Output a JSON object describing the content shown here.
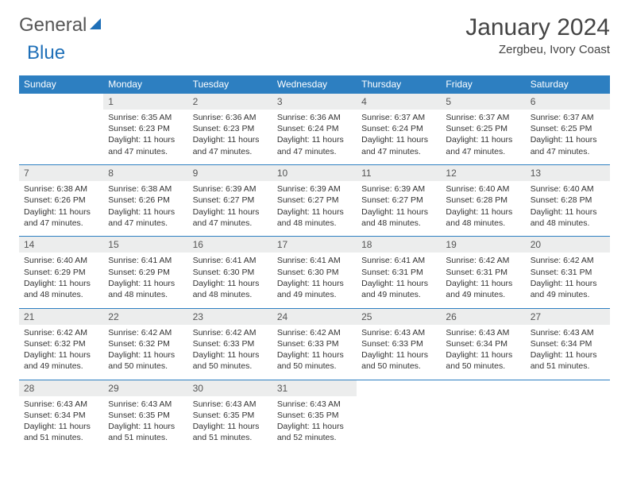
{
  "brand": {
    "word1": "General",
    "word2": "Blue"
  },
  "title": "January 2024",
  "location": "Zergbeu, Ivory Coast",
  "day_names": [
    "Sunday",
    "Monday",
    "Tuesday",
    "Wednesday",
    "Thursday",
    "Friday",
    "Saturday"
  ],
  "colors": {
    "header_bg": "#2d7fc1",
    "header_text": "#ffffff",
    "datenum_bg": "#eceded",
    "rule": "#2d7fc1",
    "brand_blue": "#1e6fb8"
  },
  "fonts": {
    "title_size_pt": 22,
    "location_size_pt": 11,
    "dayhead_size_pt": 9,
    "cell_size_pt": 8
  },
  "layout": {
    "columns": 7,
    "rows": 5,
    "first_day_column_index": 1
  },
  "days": [
    {
      "n": 1,
      "sunrise": "6:35 AM",
      "sunset": "6:23 PM",
      "daylight": "11 hours and 47 minutes."
    },
    {
      "n": 2,
      "sunrise": "6:36 AM",
      "sunset": "6:23 PM",
      "daylight": "11 hours and 47 minutes."
    },
    {
      "n": 3,
      "sunrise": "6:36 AM",
      "sunset": "6:24 PM",
      "daylight": "11 hours and 47 minutes."
    },
    {
      "n": 4,
      "sunrise": "6:37 AM",
      "sunset": "6:24 PM",
      "daylight": "11 hours and 47 minutes."
    },
    {
      "n": 5,
      "sunrise": "6:37 AM",
      "sunset": "6:25 PM",
      "daylight": "11 hours and 47 minutes."
    },
    {
      "n": 6,
      "sunrise": "6:37 AM",
      "sunset": "6:25 PM",
      "daylight": "11 hours and 47 minutes."
    },
    {
      "n": 7,
      "sunrise": "6:38 AM",
      "sunset": "6:26 PM",
      "daylight": "11 hours and 47 minutes."
    },
    {
      "n": 8,
      "sunrise": "6:38 AM",
      "sunset": "6:26 PM",
      "daylight": "11 hours and 47 minutes."
    },
    {
      "n": 9,
      "sunrise": "6:39 AM",
      "sunset": "6:27 PM",
      "daylight": "11 hours and 47 minutes."
    },
    {
      "n": 10,
      "sunrise": "6:39 AM",
      "sunset": "6:27 PM",
      "daylight": "11 hours and 48 minutes."
    },
    {
      "n": 11,
      "sunrise": "6:39 AM",
      "sunset": "6:27 PM",
      "daylight": "11 hours and 48 minutes."
    },
    {
      "n": 12,
      "sunrise": "6:40 AM",
      "sunset": "6:28 PM",
      "daylight": "11 hours and 48 minutes."
    },
    {
      "n": 13,
      "sunrise": "6:40 AM",
      "sunset": "6:28 PM",
      "daylight": "11 hours and 48 minutes."
    },
    {
      "n": 14,
      "sunrise": "6:40 AM",
      "sunset": "6:29 PM",
      "daylight": "11 hours and 48 minutes."
    },
    {
      "n": 15,
      "sunrise": "6:41 AM",
      "sunset": "6:29 PM",
      "daylight": "11 hours and 48 minutes."
    },
    {
      "n": 16,
      "sunrise": "6:41 AM",
      "sunset": "6:30 PM",
      "daylight": "11 hours and 48 minutes."
    },
    {
      "n": 17,
      "sunrise": "6:41 AM",
      "sunset": "6:30 PM",
      "daylight": "11 hours and 49 minutes."
    },
    {
      "n": 18,
      "sunrise": "6:41 AM",
      "sunset": "6:31 PM",
      "daylight": "11 hours and 49 minutes."
    },
    {
      "n": 19,
      "sunrise": "6:42 AM",
      "sunset": "6:31 PM",
      "daylight": "11 hours and 49 minutes."
    },
    {
      "n": 20,
      "sunrise": "6:42 AM",
      "sunset": "6:31 PM",
      "daylight": "11 hours and 49 minutes."
    },
    {
      "n": 21,
      "sunrise": "6:42 AM",
      "sunset": "6:32 PM",
      "daylight": "11 hours and 49 minutes."
    },
    {
      "n": 22,
      "sunrise": "6:42 AM",
      "sunset": "6:32 PM",
      "daylight": "11 hours and 50 minutes."
    },
    {
      "n": 23,
      "sunrise": "6:42 AM",
      "sunset": "6:33 PM",
      "daylight": "11 hours and 50 minutes."
    },
    {
      "n": 24,
      "sunrise": "6:42 AM",
      "sunset": "6:33 PM",
      "daylight": "11 hours and 50 minutes."
    },
    {
      "n": 25,
      "sunrise": "6:43 AM",
      "sunset": "6:33 PM",
      "daylight": "11 hours and 50 minutes."
    },
    {
      "n": 26,
      "sunrise": "6:43 AM",
      "sunset": "6:34 PM",
      "daylight": "11 hours and 50 minutes."
    },
    {
      "n": 27,
      "sunrise": "6:43 AM",
      "sunset": "6:34 PM",
      "daylight": "11 hours and 51 minutes."
    },
    {
      "n": 28,
      "sunrise": "6:43 AM",
      "sunset": "6:34 PM",
      "daylight": "11 hours and 51 minutes."
    },
    {
      "n": 29,
      "sunrise": "6:43 AM",
      "sunset": "6:35 PM",
      "daylight": "11 hours and 51 minutes."
    },
    {
      "n": 30,
      "sunrise": "6:43 AM",
      "sunset": "6:35 PM",
      "daylight": "11 hours and 51 minutes."
    },
    {
      "n": 31,
      "sunrise": "6:43 AM",
      "sunset": "6:35 PM",
      "daylight": "11 hours and 52 minutes."
    }
  ],
  "labels": {
    "sunrise": "Sunrise:",
    "sunset": "Sunset:",
    "daylight": "Daylight:"
  }
}
